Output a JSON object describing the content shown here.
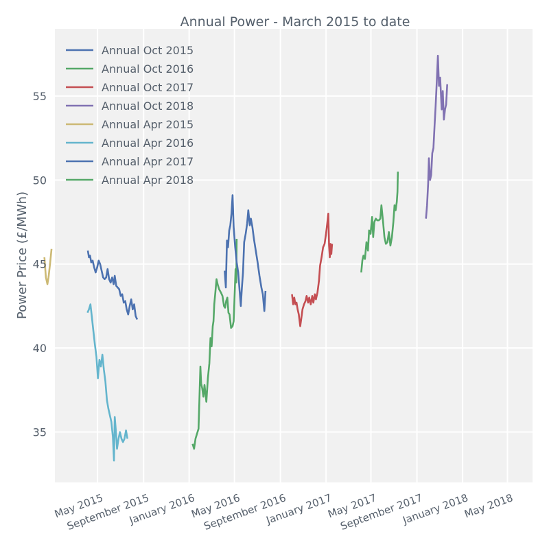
{
  "chart_data": {
    "type": "line",
    "title": "Annual Power - March 2015 to date",
    "xlabel": "",
    "ylabel": "Power Price (£/MWh)",
    "ylim": [
      32.0,
      59.0
    ],
    "xlim": [
      "2015-01-07",
      "2018-07-07"
    ],
    "grid": true,
    "legend_position": "top-left",
    "y_ticks": [
      35,
      40,
      45,
      50,
      55
    ],
    "x_ticks": [
      {
        "date": "2015-05-01",
        "label": "May 2015"
      },
      {
        "date": "2015-09-01",
        "label": "September 2015"
      },
      {
        "date": "2016-01-01",
        "label": "January 2016"
      },
      {
        "date": "2016-05-01",
        "label": "May 2016"
      },
      {
        "date": "2016-09-01",
        "label": "September 2016"
      },
      {
        "date": "2017-01-01",
        "label": "January 2017"
      },
      {
        "date": "2017-05-01",
        "label": "May 2017"
      },
      {
        "date": "2017-09-01",
        "label": "September 2017"
      },
      {
        "date": "2018-01-01",
        "label": "January 2018"
      },
      {
        "date": "2018-05-01",
        "label": "May 2018"
      }
    ],
    "series": [
      {
        "name": "Annual Oct 2015",
        "color": "#4c72b0",
        "points": [
          [
            "2015-04-05",
            45.8
          ],
          [
            "2015-04-08",
            45.4
          ],
          [
            "2015-04-11",
            45.5
          ],
          [
            "2015-04-14",
            45.1
          ],
          [
            "2015-04-18",
            45.2
          ],
          [
            "2015-04-22",
            44.8
          ],
          [
            "2015-04-26",
            44.5
          ],
          [
            "2015-04-30",
            44.8
          ],
          [
            "2015-05-04",
            45.2
          ],
          [
            "2015-05-08",
            45.0
          ],
          [
            "2015-05-12",
            44.6
          ],
          [
            "2015-05-16",
            44.2
          ],
          [
            "2015-05-20",
            44.1
          ],
          [
            "2015-05-24",
            44.2
          ],
          [
            "2015-05-28",
            44.7
          ],
          [
            "2015-06-01",
            44.1
          ],
          [
            "2015-06-05",
            43.9
          ],
          [
            "2015-06-09",
            44.2
          ],
          [
            "2015-06-13",
            43.8
          ],
          [
            "2015-06-16",
            44.3
          ],
          [
            "2015-06-20",
            43.7
          ],
          [
            "2015-06-24",
            43.6
          ],
          [
            "2015-06-28",
            43.5
          ],
          [
            "2015-07-02",
            43.1
          ],
          [
            "2015-07-06",
            43.2
          ],
          [
            "2015-07-10",
            42.7
          ],
          [
            "2015-07-14",
            42.8
          ],
          [
            "2015-07-18",
            42.3
          ],
          [
            "2015-07-22",
            42.0
          ],
          [
            "2015-07-26",
            42.5
          ],
          [
            "2015-07-30",
            42.9
          ],
          [
            "2015-08-03",
            42.3
          ],
          [
            "2015-08-07",
            42.6
          ],
          [
            "2015-08-11",
            41.9
          ],
          [
            "2015-08-15",
            41.7
          ]
        ]
      },
      {
        "name": "Annual Oct 2016",
        "color": "#55a868",
        "points": [
          [
            "2016-01-10",
            34.3
          ],
          [
            "2016-01-14",
            34.0
          ],
          [
            "2016-01-18",
            34.6
          ],
          [
            "2016-01-22",
            34.9
          ],
          [
            "2016-01-26",
            35.2
          ],
          [
            "2016-01-29",
            37.4
          ],
          [
            "2016-01-31",
            38.9
          ],
          [
            "2016-02-02",
            37.9
          ],
          [
            "2016-02-05",
            37.6
          ],
          [
            "2016-02-08",
            37.1
          ],
          [
            "2016-02-11",
            37.8
          ],
          [
            "2016-02-13",
            37.4
          ],
          [
            "2016-02-16",
            36.8
          ],
          [
            "2016-02-20",
            38.2
          ],
          [
            "2016-02-24",
            39.1
          ],
          [
            "2016-02-27",
            40.6
          ],
          [
            "2016-03-01",
            40.1
          ],
          [
            "2016-03-04",
            41.3
          ],
          [
            "2016-03-06",
            41.6
          ],
          [
            "2016-03-08",
            42.6
          ],
          [
            "2016-03-11",
            43.3
          ],
          [
            "2016-03-14",
            44.1
          ],
          [
            "2016-03-17",
            43.8
          ],
          [
            "2016-03-21",
            43.5
          ],
          [
            "2016-03-26",
            43.3
          ],
          [
            "2016-03-30",
            43.1
          ],
          [
            "2016-04-03",
            42.5
          ],
          [
            "2016-04-06",
            42.4
          ],
          [
            "2016-04-09",
            42.8
          ],
          [
            "2016-04-12",
            43.0
          ],
          [
            "2016-04-15",
            42.1
          ],
          [
            "2016-04-18",
            42.0
          ],
          [
            "2016-04-22",
            41.2
          ],
          [
            "2016-04-26",
            41.3
          ],
          [
            "2016-04-29",
            41.6
          ],
          [
            "2016-05-02",
            43.5
          ],
          [
            "2016-05-04",
            44.7
          ],
          [
            "2016-05-06",
            43.9
          ],
          [
            "2016-05-07",
            46.5
          ]
        ]
      },
      {
        "name": "Annual Oct 2017",
        "color": "#c44e52",
        "points": [
          [
            "2016-10-02",
            43.2
          ],
          [
            "2016-10-05",
            42.6
          ],
          [
            "2016-10-08",
            43.0
          ],
          [
            "2016-10-11",
            42.6
          ],
          [
            "2016-10-14",
            42.7
          ],
          [
            "2016-10-17",
            42.3
          ],
          [
            "2016-10-20",
            42.0
          ],
          [
            "2016-10-24",
            41.3
          ],
          [
            "2016-10-27",
            41.8
          ],
          [
            "2016-10-30",
            42.3
          ],
          [
            "2016-11-03",
            42.6
          ],
          [
            "2016-11-07",
            42.8
          ],
          [
            "2016-11-10",
            43.1
          ],
          [
            "2016-11-14",
            42.7
          ],
          [
            "2016-11-17",
            43.0
          ],
          [
            "2016-11-21",
            42.6
          ],
          [
            "2016-11-25",
            43.1
          ],
          [
            "2016-11-28",
            42.7
          ],
          [
            "2016-12-02",
            43.2
          ],
          [
            "2016-12-05",
            42.9
          ],
          [
            "2016-12-09",
            43.3
          ],
          [
            "2016-12-13",
            44.0
          ],
          [
            "2016-12-16",
            44.9
          ],
          [
            "2016-12-20",
            45.4
          ],
          [
            "2016-12-24",
            46.0
          ],
          [
            "2016-12-28",
            46.2
          ],
          [
            "2017-01-01",
            46.8
          ],
          [
            "2017-01-04",
            47.4
          ],
          [
            "2017-01-07",
            48.0
          ],
          [
            "2017-01-09",
            46.1
          ],
          [
            "2017-01-11",
            45.4
          ],
          [
            "2017-01-13",
            46.2
          ],
          [
            "2017-01-15",
            45.6
          ],
          [
            "2017-01-17",
            46.2
          ]
        ]
      },
      {
        "name": "Annual Oct 2018",
        "color": "#8172b2",
        "points": [
          [
            "2017-09-25",
            47.7
          ],
          [
            "2017-09-28",
            48.5
          ],
          [
            "2017-10-01",
            49.8
          ],
          [
            "2017-10-03",
            51.3
          ],
          [
            "2017-10-06",
            50.0
          ],
          [
            "2017-10-09",
            50.3
          ],
          [
            "2017-10-12",
            51.6
          ],
          [
            "2017-10-15",
            51.9
          ],
          [
            "2017-10-18",
            53.2
          ],
          [
            "2017-10-21",
            54.4
          ],
          [
            "2017-10-24",
            55.9
          ],
          [
            "2017-10-27",
            57.4
          ],
          [
            "2017-10-30",
            55.6
          ],
          [
            "2017-11-02",
            56.1
          ],
          [
            "2017-11-06",
            54.2
          ],
          [
            "2017-11-09",
            55.3
          ],
          [
            "2017-11-12",
            53.6
          ],
          [
            "2017-11-15",
            54.2
          ],
          [
            "2017-11-18",
            54.5
          ],
          [
            "2017-11-21",
            55.7
          ]
        ]
      },
      {
        "name": "Annual Apr 2015",
        "color": "#ccb974",
        "points": [
          [
            "2014-12-10",
            45.4
          ],
          [
            "2014-12-14",
            44.2
          ],
          [
            "2014-12-18",
            43.8
          ],
          [
            "2014-12-21",
            44.2
          ],
          [
            "2014-12-25",
            45.0
          ],
          [
            "2014-12-29",
            45.9
          ]
        ]
      },
      {
        "name": "Annual Apr 2016",
        "color": "#64b5cd",
        "points": [
          [
            "2015-04-04",
            42.1
          ],
          [
            "2015-04-08",
            42.3
          ],
          [
            "2015-04-12",
            42.6
          ],
          [
            "2015-04-16",
            41.8
          ],
          [
            "2015-04-20",
            41.0
          ],
          [
            "2015-04-24",
            40.2
          ],
          [
            "2015-04-28",
            39.5
          ],
          [
            "2015-05-02",
            38.2
          ],
          [
            "2015-05-06",
            39.3
          ],
          [
            "2015-05-10",
            38.9
          ],
          [
            "2015-05-14",
            39.6
          ],
          [
            "2015-05-18",
            38.7
          ],
          [
            "2015-05-22",
            38.0
          ],
          [
            "2015-05-26",
            36.9
          ],
          [
            "2015-05-30",
            36.4
          ],
          [
            "2015-06-03",
            36.0
          ],
          [
            "2015-06-07",
            35.6
          ],
          [
            "2015-06-11",
            34.7
          ],
          [
            "2015-06-14",
            33.3
          ],
          [
            "2015-06-16",
            35.9
          ],
          [
            "2015-06-19",
            35.1
          ],
          [
            "2015-06-22",
            34.0
          ],
          [
            "2015-06-26",
            34.6
          ],
          [
            "2015-06-30",
            35.0
          ],
          [
            "2015-07-04",
            34.6
          ],
          [
            "2015-07-08",
            34.4
          ],
          [
            "2015-07-12",
            34.6
          ],
          [
            "2015-07-16",
            35.1
          ],
          [
            "2015-07-20",
            34.6
          ]
        ]
      },
      {
        "name": "Annual Apr 2017",
        "color": "#4c72b0",
        "points": [
          [
            "2016-04-05",
            44.6
          ],
          [
            "2016-04-08",
            43.6
          ],
          [
            "2016-04-11",
            46.4
          ],
          [
            "2016-04-14",
            46.0
          ],
          [
            "2016-04-17",
            47.0
          ],
          [
            "2016-04-20",
            47.3
          ],
          [
            "2016-04-23",
            48.0
          ],
          [
            "2016-04-26",
            49.1
          ],
          [
            "2016-04-29",
            47.2
          ],
          [
            "2016-05-03",
            46.0
          ],
          [
            "2016-05-07",
            45.1
          ],
          [
            "2016-05-11",
            44.5
          ],
          [
            "2016-05-15",
            43.4
          ],
          [
            "2016-05-18",
            42.5
          ],
          [
            "2016-05-21",
            43.6
          ],
          [
            "2016-05-24",
            44.5
          ],
          [
            "2016-05-27",
            46.3
          ],
          [
            "2016-05-31",
            46.8
          ],
          [
            "2016-06-04",
            47.4
          ],
          [
            "2016-06-07",
            48.2
          ],
          [
            "2016-06-11",
            47.3
          ],
          [
            "2016-06-14",
            47.7
          ],
          [
            "2016-06-18",
            47.2
          ],
          [
            "2016-06-22",
            46.5
          ],
          [
            "2016-06-27",
            45.8
          ],
          [
            "2016-07-02",
            45.1
          ],
          [
            "2016-07-07",
            44.3
          ],
          [
            "2016-07-12",
            43.6
          ],
          [
            "2016-07-16",
            43.2
          ],
          [
            "2016-07-20",
            42.2
          ],
          [
            "2016-07-23",
            43.4
          ]
        ]
      },
      {
        "name": "Annual Apr 2018",
        "color": "#55a868",
        "points": [
          [
            "2017-04-05",
            44.5
          ],
          [
            "2017-04-08",
            45.2
          ],
          [
            "2017-04-11",
            45.5
          ],
          [
            "2017-04-15",
            45.3
          ],
          [
            "2017-04-19",
            46.3
          ],
          [
            "2017-04-23",
            45.8
          ],
          [
            "2017-04-26",
            47.0
          ],
          [
            "2017-04-30",
            46.8
          ],
          [
            "2017-05-04",
            47.8
          ],
          [
            "2017-05-07",
            46.6
          ],
          [
            "2017-05-10",
            47.5
          ],
          [
            "2017-05-14",
            47.7
          ],
          [
            "2017-05-18",
            47.6
          ],
          [
            "2017-05-22",
            47.6
          ],
          [
            "2017-05-26",
            47.7
          ],
          [
            "2017-05-29",
            48.5
          ],
          [
            "2017-06-02",
            47.6
          ],
          [
            "2017-06-06",
            46.6
          ],
          [
            "2017-06-10",
            46.2
          ],
          [
            "2017-06-14",
            46.3
          ],
          [
            "2017-06-18",
            46.9
          ],
          [
            "2017-06-22",
            46.1
          ],
          [
            "2017-06-26",
            46.6
          ],
          [
            "2017-06-30",
            47.5
          ],
          [
            "2017-07-03",
            48.5
          ],
          [
            "2017-07-06",
            48.2
          ],
          [
            "2017-07-09",
            48.7
          ],
          [
            "2017-07-11",
            49.3
          ],
          [
            "2017-07-12",
            50.5
          ]
        ]
      }
    ]
  }
}
